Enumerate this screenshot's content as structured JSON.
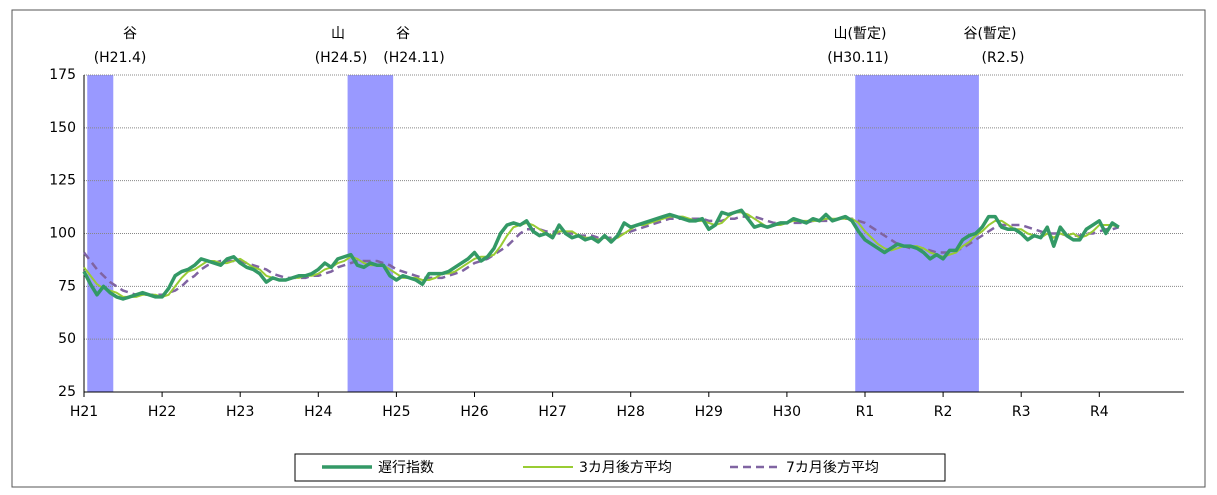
{
  "chart_data": {
    "type": "line",
    "categories": [
      "H21",
      null,
      null,
      null,
      null,
      null,
      null,
      null,
      null,
      null,
      null,
      null,
      "H22",
      null,
      null,
      null,
      null,
      null,
      null,
      null,
      null,
      null,
      null,
      null,
      "H23",
      null,
      null,
      null,
      null,
      null,
      null,
      null,
      null,
      null,
      null,
      null,
      "H24",
      null,
      null,
      null,
      null,
      null,
      null,
      null,
      null,
      null,
      null,
      null,
      "H25",
      null,
      null,
      null,
      null,
      null,
      null,
      null,
      null,
      null,
      null,
      null,
      "H26",
      null,
      null,
      null,
      null,
      null,
      null,
      null,
      null,
      null,
      null,
      null,
      "H27",
      null,
      null,
      null,
      null,
      null,
      null,
      null,
      null,
      null,
      null,
      null,
      "H28",
      null,
      null,
      null,
      null,
      null,
      null,
      null,
      null,
      null,
      null,
      null,
      "H29",
      null,
      null,
      null,
      null,
      null,
      null,
      null,
      null,
      null,
      null,
      null,
      "H30",
      null,
      null,
      null,
      null,
      null,
      null,
      null,
      null,
      null,
      null,
      null,
      "R1",
      null,
      null,
      null,
      null,
      null,
      null,
      null,
      null,
      null,
      null,
      null,
      "R2",
      null,
      null,
      null,
      null,
      null,
      null,
      null,
      null,
      null,
      null,
      null,
      "R3",
      null,
      null,
      null,
      null,
      null,
      null,
      null,
      null,
      null,
      null,
      null,
      "R4",
      null,
      null,
      null
    ],
    "series": [
      {
        "name": "遅行指数",
        "color": "#339966",
        "width": 3.5,
        "dash": false,
        "values": [
          82,
          76,
          71,
          75,
          72,
          70,
          69,
          70,
          71,
          72,
          71,
          70,
          70,
          74,
          80,
          82,
          83,
          85,
          88,
          87,
          86,
          85,
          88,
          89,
          86,
          84,
          83,
          81,
          77,
          79,
          78,
          78,
          79,
          80,
          80,
          81,
          83,
          86,
          84,
          88,
          89,
          90,
          85,
          84,
          86,
          85,
          85,
          80,
          78,
          80,
          79,
          78,
          76,
          81,
          81,
          81,
          82,
          84,
          86,
          88,
          91,
          87,
          89,
          93,
          100,
          104,
          105,
          104,
          106,
          101,
          99,
          100,
          98,
          104,
          100,
          98,
          99,
          97,
          98,
          96,
          99,
          96,
          99,
          105,
          103,
          104,
          105,
          106,
          107,
          108,
          109,
          108,
          107,
          106,
          106,
          107,
          102,
          104,
          110,
          109,
          110,
          111,
          107,
          103,
          104,
          103,
          104,
          105,
          105,
          107,
          106,
          105,
          107,
          106,
          109,
          106,
          107,
          108,
          106,
          101,
          97,
          95,
          93,
          91,
          93,
          95,
          94,
          94,
          93,
          91,
          88,
          90,
          88,
          92,
          92,
          97,
          99,
          100,
          103,
          108,
          108,
          103,
          102,
          102,
          100,
          97,
          99,
          98,
          103,
          94,
          103,
          99,
          97,
          97,
          102,
          104,
          106,
          100,
          105,
          103
        ]
      },
      {
        "name": "3カ月後方平均",
        "color": "#99cc33",
        "width": 2,
        "dash": false,
        "values": [
          84,
          80,
          76,
          74,
          73,
          72,
          70,
          70,
          70,
          71,
          71,
          71,
          70,
          71,
          75,
          79,
          82,
          83,
          85,
          87,
          87,
          86,
          86,
          87,
          88,
          86,
          84,
          83,
          80,
          79,
          78,
          78,
          79,
          79,
          80,
          80,
          81,
          83,
          84,
          86,
          87,
          89,
          88,
          86,
          85,
          85,
          85,
          83,
          81,
          79,
          79,
          79,
          78,
          78,
          79,
          81,
          81,
          82,
          84,
          86,
          88,
          89,
          89,
          90,
          94,
          99,
          103,
          104,
          105,
          104,
          102,
          100,
          99,
          101,
          101,
          101,
          99,
          98,
          98,
          97,
          98,
          97,
          98,
          100,
          102,
          104,
          104,
          105,
          106,
          107,
          108,
          108,
          108,
          107,
          106,
          106,
          105,
          104,
          105,
          108,
          110,
          110,
          109,
          107,
          105,
          103,
          104,
          104,
          105,
          106,
          106,
          106,
          106,
          106,
          107,
          107,
          107,
          107,
          107,
          105,
          101,
          98,
          95,
          93,
          92,
          93,
          94,
          94,
          94,
          93,
          91,
          90,
          89,
          90,
          91,
          94,
          96,
          99,
          101,
          104,
          106,
          106,
          104,
          102,
          102,
          100,
          99,
          98,
          100,
          98,
          100,
          99,
          100,
          98,
          99,
          101,
          104,
          104,
          104,
          103
        ]
      },
      {
        "name": "7カ月後方平均",
        "color": "#8064a2",
        "width": 2.5,
        "dash": true,
        "values": [
          91,
          87,
          83,
          80,
          77,
          75,
          73,
          72,
          71,
          71,
          71,
          71,
          71,
          72,
          73,
          75,
          78,
          80,
          83,
          85,
          86,
          87,
          87,
          87,
          87,
          86,
          85,
          84,
          83,
          81,
          80,
          79,
          79,
          79,
          79,
          80,
          80,
          81,
          82,
          84,
          85,
          86,
          87,
          87,
          87,
          87,
          86,
          85,
          83,
          82,
          81,
          80,
          79,
          79,
          79,
          79,
          80,
          81,
          82,
          84,
          86,
          87,
          88,
          90,
          92,
          94,
          97,
          100,
          102,
          102,
          102,
          101,
          101,
          100,
          100,
          100,
          99,
          99,
          99,
          98,
          98,
          98,
          99,
          100,
          101,
          102,
          103,
          104,
          105,
          106,
          107,
          107,
          107,
          107,
          107,
          107,
          106,
          106,
          106,
          107,
          107,
          108,
          108,
          108,
          107,
          106,
          105,
          105,
          105,
          105,
          105,
          105,
          106,
          106,
          106,
          106,
          107,
          107,
          107,
          106,
          105,
          103,
          101,
          99,
          97,
          95,
          94,
          93,
          93,
          93,
          92,
          91,
          91,
          91,
          92,
          93,
          95,
          97,
          99,
          101,
          103,
          104,
          104,
          104,
          104,
          103,
          102,
          101,
          100,
          100,
          100,
          99,
          99,
          99,
          100,
          100,
          101,
          102,
          102,
          103
        ]
      }
    ],
    "ylim": [
      25,
      175
    ],
    "yticks": [
      25,
      50,
      75,
      100,
      125,
      150,
      175
    ],
    "grid": true,
    "band_color": "#9999ff",
    "bands": [
      {
        "start": 0,
        "end": 3
      },
      {
        "start": 40,
        "end": 46
      },
      {
        "start": 118,
        "end": 136
      }
    ],
    "annotations": [
      {
        "label": "谷",
        "date": "(H21.4)"
      },
      {
        "label": "山",
        "date": "(H24.5)"
      },
      {
        "label": "谷",
        "date": "(H24.11)"
      },
      {
        "label": "山(暫定)",
        "date": "(H30.11)"
      },
      {
        "label": "谷(暫定)",
        "date": "(R2.5)"
      }
    ],
    "legend": "bottom"
  }
}
